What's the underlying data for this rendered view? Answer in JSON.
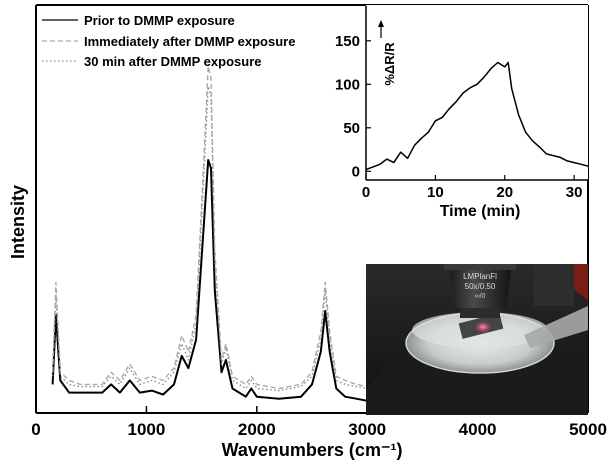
{
  "chart_data": [
    {
      "type": "line",
      "xlabel": "Wavenumbers (cm⁻¹)",
      "ylabel": "Intensity",
      "xlim": [
        0,
        5000
      ],
      "xticks": [
        0,
        1000,
        2000,
        3000,
        4000,
        5000
      ],
      "ylim": [
        0,
        1
      ],
      "y_tick_labels_shown": false,
      "legend_position": "top-left",
      "series": [
        {
          "name": "Prior to DMMP exposure",
          "line_style": "solid",
          "color": "#000000",
          "points": [
            [
              150,
              0.07
            ],
            [
              180,
              0.24
            ],
            [
              220,
              0.08
            ],
            [
              300,
              0.05
            ],
            [
              400,
              0.05
            ],
            [
              500,
              0.05
            ],
            [
              600,
              0.05
            ],
            [
              680,
              0.07
            ],
            [
              760,
              0.05
            ],
            [
              850,
              0.08
            ],
            [
              940,
              0.05
            ],
            [
              1050,
              0.055
            ],
            [
              1150,
              0.045
            ],
            [
              1250,
              0.07
            ],
            [
              1320,
              0.14
            ],
            [
              1380,
              0.11
            ],
            [
              1450,
              0.18
            ],
            [
              1520,
              0.46
            ],
            [
              1560,
              0.62
            ],
            [
              1585,
              0.6
            ],
            [
              1620,
              0.3
            ],
            [
              1680,
              0.1
            ],
            [
              1720,
              0.13
            ],
            [
              1780,
              0.06
            ],
            [
              1900,
              0.04
            ],
            [
              1950,
              0.06
            ],
            [
              2000,
              0.04
            ],
            [
              2200,
              0.035
            ],
            [
              2400,
              0.04
            ],
            [
              2500,
              0.07
            ],
            [
              2580,
              0.15
            ],
            [
              2620,
              0.25
            ],
            [
              2660,
              0.15
            ],
            [
              2720,
              0.06
            ],
            [
              2800,
              0.04
            ],
            [
              2900,
              0.035
            ],
            [
              3000,
              0.03
            ]
          ]
        },
        {
          "name": "Immediately after DMMP exposure",
          "line_style": "dashed",
          "color": "#aaaaaa",
          "points": [
            [
              150,
              0.1
            ],
            [
              180,
              0.32
            ],
            [
              220,
              0.1
            ],
            [
              300,
              0.08
            ],
            [
              400,
              0.07
            ],
            [
              500,
              0.07
            ],
            [
              600,
              0.07
            ],
            [
              680,
              0.1
            ],
            [
              760,
              0.08
            ],
            [
              850,
              0.12
            ],
            [
              940,
              0.08
            ],
            [
              1050,
              0.09
            ],
            [
              1150,
              0.08
            ],
            [
              1250,
              0.11
            ],
            [
              1320,
              0.19
            ],
            [
              1380,
              0.15
            ],
            [
              1450,
              0.24
            ],
            [
              1520,
              0.62
            ],
            [
              1560,
              0.85
            ],
            [
              1585,
              0.82
            ],
            [
              1620,
              0.4
            ],
            [
              1680,
              0.13
            ],
            [
              1720,
              0.17
            ],
            [
              1780,
              0.09
            ],
            [
              1900,
              0.07
            ],
            [
              1950,
              0.09
            ],
            [
              2000,
              0.07
            ],
            [
              2200,
              0.06
            ],
            [
              2400,
              0.07
            ],
            [
              2500,
              0.1
            ],
            [
              2580,
              0.2
            ],
            [
              2620,
              0.32
            ],
            [
              2660,
              0.2
            ],
            [
              2720,
              0.09
            ],
            [
              2800,
              0.08
            ],
            [
              2900,
              0.07
            ],
            [
              3000,
              0.065
            ]
          ]
        },
        {
          "name": "30 min after DMMP exposure",
          "line_style": "dotted",
          "color": "#8a8a8a",
          "points": [
            [
              150,
              0.09
            ],
            [
              180,
              0.29
            ],
            [
              220,
              0.09
            ],
            [
              300,
              0.07
            ],
            [
              400,
              0.065
            ],
            [
              500,
              0.065
            ],
            [
              600,
              0.065
            ],
            [
              680,
              0.09
            ],
            [
              760,
              0.07
            ],
            [
              850,
              0.11
            ],
            [
              940,
              0.07
            ],
            [
              1050,
              0.08
            ],
            [
              1150,
              0.07
            ],
            [
              1250,
              0.1
            ],
            [
              1320,
              0.17
            ],
            [
              1380,
              0.13
            ],
            [
              1450,
              0.22
            ],
            [
              1520,
              0.58
            ],
            [
              1560,
              0.8
            ],
            [
              1585,
              0.78
            ],
            [
              1620,
              0.37
            ],
            [
              1680,
              0.12
            ],
            [
              1720,
              0.16
            ],
            [
              1780,
              0.08
            ],
            [
              1900,
              0.06
            ],
            [
              1950,
              0.08
            ],
            [
              2000,
              0.06
            ],
            [
              2200,
              0.055
            ],
            [
              2400,
              0.065
            ],
            [
              2500,
              0.09
            ],
            [
              2580,
              0.18
            ],
            [
              2620,
              0.3
            ],
            [
              2660,
              0.18
            ],
            [
              2720,
              0.08
            ],
            [
              2800,
              0.07
            ],
            [
              2900,
              0.065
            ],
            [
              3000,
              0.06
            ]
          ]
        }
      ]
    },
    {
      "type": "line",
      "position": "inset-top-right",
      "xlabel": "Time (min)",
      "ylabel": "%ΔR/R",
      "xlim": [
        0,
        32
      ],
      "ylim": [
        -10,
        190
      ],
      "xticks": [
        0,
        10,
        20,
        30
      ],
      "yticks": [
        0,
        50,
        100,
        150
      ],
      "series": [
        {
          "color": "#000000",
          "points": [
            [
              0,
              2
            ],
            [
              1,
              5
            ],
            [
              2,
              8
            ],
            [
              3,
              14
            ],
            [
              4,
              10
            ],
            [
              5,
              22
            ],
            [
              6,
              15
            ],
            [
              7,
              30
            ],
            [
              8,
              38
            ],
            [
              9,
              45
            ],
            [
              10,
              58
            ],
            [
              11,
              62
            ],
            [
              12,
              72
            ],
            [
              13,
              80
            ],
            [
              14,
              90
            ],
            [
              15,
              96
            ],
            [
              16,
              100
            ],
            [
              17,
              108
            ],
            [
              18,
              118
            ],
            [
              19,
              125
            ],
            [
              20,
              120
            ],
            [
              20.5,
              125
            ],
            [
              21,
              95
            ],
            [
              22,
              65
            ],
            [
              23,
              45
            ],
            [
              24,
              35
            ],
            [
              25,
              28
            ],
            [
              26,
              20
            ],
            [
              27,
              18
            ],
            [
              28,
              16
            ],
            [
              29,
              12
            ],
            [
              30,
              10
            ],
            [
              31,
              8
            ],
            [
              32,
              6
            ]
          ]
        }
      ]
    }
  ],
  "inset_photo": {
    "lens_text_1": "LMPlanFl",
    "lens_text_2": "50x/0.50",
    "lens_text_3": "∞/0"
  }
}
